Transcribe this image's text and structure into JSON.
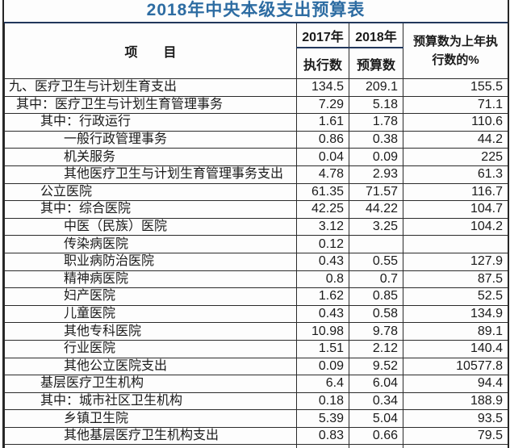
{
  "title": "2018年中央本级支出预算表",
  "table": {
    "header": {
      "item": "项　　目",
      "y2017": "2017年",
      "y2017_sub": "执行数",
      "y2018": "2018年",
      "y2018_sub": "预算数",
      "pct": "预算数为上年执行数的%"
    },
    "rows": [
      {
        "name": "九、医疗卫生与计划生育支出",
        "indent": 0,
        "v2017": "134.5",
        "v2018": "209.1",
        "pct": "155.5"
      },
      {
        "name": "其中：医疗卫生与计划生育管理事务",
        "indent": 1,
        "v2017": "7.29",
        "v2018": "5.18",
        "pct": "71.1"
      },
      {
        "name": "其中：行政运行",
        "indent": 2,
        "v2017": "1.61",
        "v2018": "1.78",
        "pct": "110.6"
      },
      {
        "name": "一般行政管理事务",
        "indent": 3,
        "v2017": "0.86",
        "v2018": "0.38",
        "pct": "44.2"
      },
      {
        "name": "机关服务",
        "indent": 3,
        "v2017": "0.04",
        "v2018": "0.09",
        "pct": "225"
      },
      {
        "name": "其他医疗卫生与计划生育管理事务支出",
        "indent": 3,
        "v2017": "4.78",
        "v2018": "2.93",
        "pct": "61.3"
      },
      {
        "name": "公立医院",
        "indent": 2,
        "v2017": "61.35",
        "v2018": "71.57",
        "pct": "116.7"
      },
      {
        "name": "其中：综合医院",
        "indent": 2,
        "v2017": "42.25",
        "v2018": "44.22",
        "pct": "104.7"
      },
      {
        "name": "中医（民族）医院",
        "indent": 3,
        "v2017": "3.12",
        "v2018": "3.25",
        "pct": "104.2"
      },
      {
        "name": "传染病医院",
        "indent": 3,
        "v2017": "0.12",
        "v2018": "",
        "pct": ""
      },
      {
        "name": "职业病防治医院",
        "indent": 3,
        "v2017": "0.43",
        "v2018": "0.55",
        "pct": "127.9"
      },
      {
        "name": "精神病医院",
        "indent": 3,
        "v2017": "0.8",
        "v2018": "0.7",
        "pct": "87.5"
      },
      {
        "name": "妇产医院",
        "indent": 3,
        "v2017": "1.62",
        "v2018": "0.85",
        "pct": "52.5"
      },
      {
        "name": "儿童医院",
        "indent": 3,
        "v2017": "0.43",
        "v2018": "0.58",
        "pct": "134.9"
      },
      {
        "name": "其他专科医院",
        "indent": 3,
        "v2017": "10.98",
        "v2018": "9.78",
        "pct": "89.1"
      },
      {
        "name": "行业医院",
        "indent": 3,
        "v2017": "1.51",
        "v2018": "2.12",
        "pct": "140.4"
      },
      {
        "name": "其他公立医院支出",
        "indent": 3,
        "v2017": "0.09",
        "v2018": "9.52",
        "pct": "10577.8"
      },
      {
        "name": "基层医疗卫生机构",
        "indent": 2,
        "v2017": "6.4",
        "v2018": "6.04",
        "pct": "94.4"
      },
      {
        "name": "其中：城市社区卫生机构",
        "indent": 2,
        "v2017": "0.18",
        "v2018": "0.34",
        "pct": "188.9"
      },
      {
        "name": "乡镇卫生院",
        "indent": 3,
        "v2017": "5.39",
        "v2018": "5.04",
        "pct": "93.5"
      },
      {
        "name": "其他基层医疗卫生机构支出",
        "indent": 3,
        "v2017": "0.83",
        "v2018": "0.66",
        "pct": "79.5"
      }
    ]
  }
}
